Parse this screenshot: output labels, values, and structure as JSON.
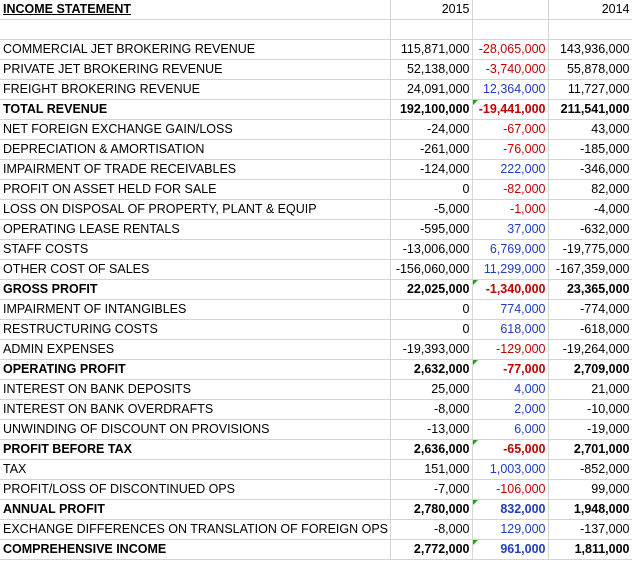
{
  "sheet": {
    "title": "INCOME STATEMENT",
    "col_2015": "2015",
    "col_2014": "2014",
    "rows": [
      {
        "label": "COMMERCIAL JET BROKERING REVENUE",
        "v2015": "115,871,000",
        "change": "-28,065,000",
        "dir": "neg",
        "v2014": "143,936,000",
        "bold": false,
        "flag": false
      },
      {
        "label": "PRIVATE JET BROKERING REVENUE",
        "v2015": "52,138,000",
        "change": "-3,740,000",
        "dir": "neg",
        "v2014": "55,878,000",
        "bold": false,
        "flag": false
      },
      {
        "label": "FREIGHT BROKERING REVENUE",
        "v2015": "24,091,000",
        "change": "12,364,000",
        "dir": "pos",
        "v2014": "11,727,000",
        "bold": false,
        "flag": false
      },
      {
        "label": "TOTAL REVENUE",
        "v2015": "192,100,000",
        "change": "-19,441,000",
        "dir": "neg",
        "v2014": "211,541,000",
        "bold": true,
        "flag": true
      },
      {
        "label": "NET FOREIGN EXCHANGE GAIN/LOSS",
        "v2015": "-24,000",
        "change": "-67,000",
        "dir": "neg",
        "v2014": "43,000",
        "bold": false,
        "flag": false
      },
      {
        "label": "DEPRECIATION & AMORTISATION",
        "v2015": "-261,000",
        "change": "-76,000",
        "dir": "neg",
        "v2014": "-185,000",
        "bold": false,
        "flag": false
      },
      {
        "label": "IMPAIRMENT OF TRADE RECEIVABLES",
        "v2015": "-124,000",
        "change": "222,000",
        "dir": "pos",
        "v2014": "-346,000",
        "bold": false,
        "flag": false
      },
      {
        "label": "PROFIT ON ASSET HELD FOR SALE",
        "v2015": "0",
        "change": "-82,000",
        "dir": "neg",
        "v2014": "82,000",
        "bold": false,
        "flag": false
      },
      {
        "label": "LOSS ON DISPOSAL OF PROPERTY, PLANT & EQUIP",
        "v2015": "-5,000",
        "change": "-1,000",
        "dir": "neg",
        "v2014": "-4,000",
        "bold": false,
        "flag": false
      },
      {
        "label": "OPERATING LEASE RENTALS",
        "v2015": "-595,000",
        "change": "37,000",
        "dir": "pos",
        "v2014": "-632,000",
        "bold": false,
        "flag": false
      },
      {
        "label": "STAFF COSTS",
        "v2015": "-13,006,000",
        "change": "6,769,000",
        "dir": "pos",
        "v2014": "-19,775,000",
        "bold": false,
        "flag": false
      },
      {
        "label": "OTHER COST OF SALES",
        "v2015": "-156,060,000",
        "change": "11,299,000",
        "dir": "pos",
        "v2014": "-167,359,000",
        "bold": false,
        "flag": false
      },
      {
        "label": "GROSS PROFIT",
        "v2015": "22,025,000",
        "change": "-1,340,000",
        "dir": "neg",
        "v2014": "23,365,000",
        "bold": true,
        "flag": true
      },
      {
        "label": "IMPAIRMENT OF INTANGIBLES",
        "v2015": "0",
        "change": "774,000",
        "dir": "pos",
        "v2014": "-774,000",
        "bold": false,
        "flag": false
      },
      {
        "label": "RESTRUCTURING COSTS",
        "v2015": "0",
        "change": "618,000",
        "dir": "pos",
        "v2014": "-618,000",
        "bold": false,
        "flag": false
      },
      {
        "label": "ADMIN EXPENSES",
        "v2015": "-19,393,000",
        "change": "-129,000",
        "dir": "neg",
        "v2014": "-19,264,000",
        "bold": false,
        "flag": false
      },
      {
        "label": "OPERATING PROFIT",
        "v2015": "2,632,000",
        "change": "-77,000",
        "dir": "neg",
        "v2014": "2,709,000",
        "bold": true,
        "flag": true
      },
      {
        "label": "INTEREST ON BANK DEPOSITS",
        "v2015": "25,000",
        "change": "4,000",
        "dir": "pos",
        "v2014": "21,000",
        "bold": false,
        "flag": false
      },
      {
        "label": "INTEREST ON BANK OVERDRAFTS",
        "v2015": "-8,000",
        "change": "2,000",
        "dir": "pos",
        "v2014": "-10,000",
        "bold": false,
        "flag": false
      },
      {
        "label": "UNWINDING OF DISCOUNT ON PROVISIONS",
        "v2015": "-13,000",
        "change": "6,000",
        "dir": "pos",
        "v2014": "-19,000",
        "bold": false,
        "flag": false
      },
      {
        "label": "PROFIT BEFORE TAX",
        "v2015": "2,636,000",
        "change": "-65,000",
        "dir": "neg",
        "v2014": "2,701,000",
        "bold": true,
        "flag": true
      },
      {
        "label": "TAX",
        "v2015": "151,000",
        "change": "1,003,000",
        "dir": "pos",
        "v2014": "-852,000",
        "bold": false,
        "flag": false
      },
      {
        "label": "PROFIT/LOSS OF DISCONTINUED OPS",
        "v2015": "-7,000",
        "change": "-106,000",
        "dir": "neg",
        "v2014": "99,000",
        "bold": false,
        "flag": false
      },
      {
        "label": "ANNUAL PROFIT",
        "v2015": "2,780,000",
        "change": "832,000",
        "dir": "pos",
        "v2014": "1,948,000",
        "bold": true,
        "flag": true
      },
      {
        "label": "EXCHANGE DIFFERENCES ON TRANSLATION OF FOREIGN OPS",
        "v2015": "-8,000",
        "change": "129,000",
        "dir": "pos",
        "v2014": "-137,000",
        "bold": false,
        "flag": false
      },
      {
        "label": "COMPREHENSIVE INCOME",
        "v2015": "2,772,000",
        "change": "961,000",
        "dir": "pos",
        "v2014": "1,811,000",
        "bold": true,
        "flag": true
      }
    ]
  },
  "colors": {
    "negative": "#c00000",
    "positive": "#1f3dbd",
    "gridline": "#d4d4d4",
    "error_flag": "#1aa31a"
  }
}
